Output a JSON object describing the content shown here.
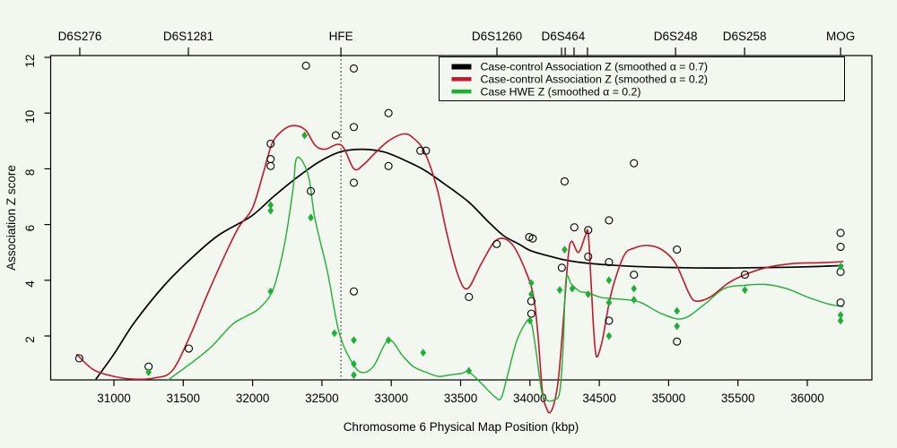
{
  "figure": {
    "background_color": "#F2F7EF",
    "axis_color": "#000000"
  },
  "chart_data": {
    "type": "line",
    "title": "",
    "xlabel": "Chromosome 6 Physical Map Position (kbp)",
    "ylabel": "Association Z score",
    "xlim": [
      30550,
      36465
    ],
    "ylim": [
      0.43,
      12.05
    ],
    "grid": false,
    "x_ticks": [
      31000,
      31500,
      32000,
      32500,
      33000,
      33500,
      34000,
      34500,
      35000,
      35500,
      36000
    ],
    "y_ticks": [
      2,
      4,
      6,
      8,
      10,
      12
    ],
    "hfe_dotted_line_x": 32637,
    "top_markers": [
      {
        "label": "D6S276",
        "x": 30754,
        "ticks": [
          30754
        ]
      },
      {
        "label": "D6S1281",
        "x": 31537,
        "ticks": [
          31537
        ]
      },
      {
        "label": "HFE",
        "x": 32637,
        "ticks": [
          32637
        ]
      },
      {
        "label": "D6S1260",
        "x": 33762,
        "ticks": [
          33762
        ]
      },
      {
        "label": "D6S464",
        "x": 34240,
        "ticks": [
          34228,
          34254,
          34318,
          34415
        ]
      },
      {
        "label": "D6S248",
        "x": 35050,
        "ticks": [
          35050
        ]
      },
      {
        "label": "D6S258",
        "x": 35548,
        "ticks": [
          35548
        ]
      },
      {
        "label": "MOG",
        "x": 36240,
        "ticks": [
          36240
        ]
      }
    ],
    "legend": {
      "position": "top-center",
      "entries": [
        {
          "label": "Case-control Association Z (smoothed α = 0.7)",
          "color": "#000000",
          "swatch_height": 6
        },
        {
          "label": "Case-control Association Z (smoothed α = 0.2)",
          "color": "#C2182E",
          "swatch_height": 4.5
        },
        {
          "label": "Case HWE Z (smoothed α = 0.2)",
          "color": "#1FAE36",
          "swatch_height": 4.5
        }
      ]
    },
    "series": [
      {
        "name": "Case-control Association Z (smoothed α = 0.7)",
        "color": "#000000",
        "width": 1.7,
        "points": [
          [
            30870,
            0.45
          ],
          [
            31000,
            1.35
          ],
          [
            31150,
            2.5
          ],
          [
            31360,
            3.8
          ],
          [
            31550,
            4.75
          ],
          [
            31750,
            5.6
          ],
          [
            31990,
            6.3
          ],
          [
            32150,
            7.0
          ],
          [
            32310,
            7.65
          ],
          [
            32480,
            8.25
          ],
          [
            32640,
            8.62
          ],
          [
            32800,
            8.7
          ],
          [
            32950,
            8.6
          ],
          [
            33100,
            8.3
          ],
          [
            33240,
            7.95
          ],
          [
            33400,
            7.4
          ],
          [
            33560,
            6.8
          ],
          [
            33700,
            6.1
          ],
          [
            33810,
            5.6
          ],
          [
            33920,
            5.3
          ],
          [
            34010,
            5.05
          ],
          [
            34130,
            4.88
          ],
          [
            34250,
            4.73
          ],
          [
            34400,
            4.62
          ],
          [
            34570,
            4.55
          ],
          [
            34745,
            4.5
          ],
          [
            35000,
            4.46
          ],
          [
            35300,
            4.44
          ],
          [
            35600,
            4.45
          ],
          [
            35900,
            4.47
          ],
          [
            36100,
            4.5
          ],
          [
            36260,
            4.53
          ]
        ]
      },
      {
        "name": "Case-control Association Z (smoothed α = 0.2)",
        "color": "#C2182E",
        "width": 1.6,
        "points": [
          [
            30730,
            1.35
          ],
          [
            30850,
            0.8
          ],
          [
            31000,
            0.55
          ],
          [
            31150,
            0.45
          ],
          [
            31300,
            0.5
          ],
          [
            31420,
            0.75
          ],
          [
            31540,
            1.9
          ],
          [
            31670,
            3.45
          ],
          [
            31800,
            4.9
          ],
          [
            31900,
            5.9
          ],
          [
            32000,
            6.6
          ],
          [
            32080,
            7.9
          ],
          [
            32140,
            8.9
          ],
          [
            32210,
            9.35
          ],
          [
            32290,
            9.55
          ],
          [
            32380,
            9.4
          ],
          [
            32450,
            8.85
          ],
          [
            32520,
            8.7
          ],
          [
            32640,
            8.85
          ],
          [
            32730,
            8.0
          ],
          [
            32800,
            8.15
          ],
          [
            32870,
            8.5
          ],
          [
            32980,
            9.0
          ],
          [
            33090,
            9.25
          ],
          [
            33160,
            9.1
          ],
          [
            33240,
            8.6
          ],
          [
            33330,
            7.3
          ],
          [
            33400,
            5.7
          ],
          [
            33480,
            4.2
          ],
          [
            33550,
            3.7
          ],
          [
            33650,
            4.6
          ],
          [
            33760,
            5.45
          ],
          [
            33870,
            5.3
          ],
          [
            33980,
            4.2
          ],
          [
            34030,
            3.3
          ],
          [
            34060,
            1.9
          ],
          [
            34090,
            0.0
          ],
          [
            34120,
            -0.6
          ],
          [
            34145,
            -0.75
          ],
          [
            34175,
            -0.4
          ],
          [
            34205,
            0.45
          ],
          [
            34240,
            2.5
          ],
          [
            34275,
            4.8
          ],
          [
            34300,
            5.4
          ],
          [
            34350,
            5.0
          ],
          [
            34400,
            5.6
          ],
          [
            34420,
            5.7
          ],
          [
            34440,
            4.0
          ],
          [
            34460,
            2.2
          ],
          [
            34480,
            1.26
          ],
          [
            34520,
            1.8
          ],
          [
            34560,
            2.9
          ],
          [
            34600,
            3.8
          ],
          [
            34680,
            4.9
          ],
          [
            34750,
            5.15
          ],
          [
            34850,
            5.25
          ],
          [
            34950,
            5.1
          ],
          [
            35050,
            4.6
          ],
          [
            35150,
            3.5
          ],
          [
            35200,
            3.25
          ],
          [
            35300,
            3.4
          ],
          [
            35430,
            3.9
          ],
          [
            35550,
            4.2
          ],
          [
            35700,
            4.45
          ],
          [
            35900,
            4.6
          ],
          [
            36100,
            4.63
          ],
          [
            36260,
            4.67
          ]
        ]
      },
      {
        "name": "Case HWE Z (smoothed α = 0.2)",
        "color": "#1FAE36",
        "width": 1.4,
        "points": [
          [
            31390,
            0.42
          ],
          [
            31550,
            1.0
          ],
          [
            31700,
            1.6
          ],
          [
            31850,
            2.4
          ],
          [
            31950,
            2.7
          ],
          [
            32050,
            3.0
          ],
          [
            32150,
            3.7
          ],
          [
            32230,
            5.3
          ],
          [
            32290,
            7.2
          ],
          [
            32320,
            8.4
          ],
          [
            32400,
            7.8
          ],
          [
            32450,
            6.2
          ],
          [
            32540,
            4.3
          ],
          [
            32620,
            2.2
          ],
          [
            32700,
            1.2
          ],
          [
            32780,
            0.7
          ],
          [
            32870,
            0.9
          ],
          [
            32980,
            1.85
          ],
          [
            33080,
            1.3
          ],
          [
            33160,
            0.9
          ],
          [
            33250,
            0.7
          ],
          [
            33340,
            0.55
          ],
          [
            33420,
            0.6
          ],
          [
            33500,
            0.65
          ],
          [
            33560,
            0.7
          ],
          [
            33650,
            0.3
          ],
          [
            33740,
            -0.15
          ],
          [
            33790,
            -0.25
          ],
          [
            33830,
            0.42
          ],
          [
            33900,
            1.75
          ],
          [
            33960,
            2.4
          ],
          [
            34005,
            2.55
          ],
          [
            34040,
            1.6
          ],
          [
            34085,
            0.0
          ],
          [
            34120,
            -0.3
          ],
          [
            34170,
            -0.3
          ],
          [
            34215,
            0.0
          ],
          [
            34240,
            1.7
          ],
          [
            34260,
            4.05
          ],
          [
            34300,
            3.85
          ],
          [
            34360,
            3.6
          ],
          [
            34420,
            3.55
          ],
          [
            34500,
            3.4
          ],
          [
            34570,
            3.35
          ],
          [
            34700,
            3.3
          ],
          [
            34800,
            3.2
          ],
          [
            34950,
            2.8
          ],
          [
            35100,
            2.62
          ],
          [
            35250,
            3.1
          ],
          [
            35400,
            3.7
          ],
          [
            35550,
            3.82
          ],
          [
            35700,
            3.85
          ],
          [
            35850,
            3.7
          ],
          [
            36000,
            3.4
          ],
          [
            36150,
            3.15
          ],
          [
            36260,
            3.05
          ]
        ]
      }
    ],
    "scatter": [
      {
        "name": "Case-control Association Z observations",
        "marker": "open-circle",
        "color": "#000000",
        "points": [
          [
            30750,
            1.2
          ],
          [
            31250,
            0.9
          ],
          [
            31540,
            1.55
          ],
          [
            32130,
            8.9
          ],
          [
            32130,
            8.35
          ],
          [
            32130,
            8.1
          ],
          [
            32385,
            11.7
          ],
          [
            32420,
            7.2
          ],
          [
            32600,
            9.2
          ],
          [
            32730,
            11.6
          ],
          [
            32730,
            9.5
          ],
          [
            32730,
            7.5
          ],
          [
            32730,
            3.6
          ],
          [
            32980,
            10.0
          ],
          [
            32980,
            8.1
          ],
          [
            33210,
            8.65
          ],
          [
            33250,
            8.65
          ],
          [
            33560,
            3.4
          ],
          [
            33760,
            5.3
          ],
          [
            33995,
            5.55
          ],
          [
            34020,
            5.5
          ],
          [
            34010,
            3.25
          ],
          [
            34010,
            2.8
          ],
          [
            34230,
            4.45
          ],
          [
            34250,
            7.55
          ],
          [
            34320,
            5.9
          ],
          [
            34420,
            5.8
          ],
          [
            34420,
            4.85
          ],
          [
            34570,
            6.15
          ],
          [
            34570,
            4.65
          ],
          [
            34570,
            2.55
          ],
          [
            34750,
            8.2
          ],
          [
            34750,
            4.2
          ],
          [
            35060,
            5.1
          ],
          [
            35060,
            1.8
          ],
          [
            35550,
            4.2
          ],
          [
            36240,
            5.7
          ],
          [
            36240,
            5.2
          ],
          [
            36240,
            4.3
          ],
          [
            36240,
            3.2
          ]
        ]
      },
      {
        "name": "Case HWE Z observations",
        "marker": "filled-diamond",
        "color": "#1FAE36",
        "points": [
          [
            31250,
            0.7
          ],
          [
            32130,
            6.7
          ],
          [
            32130,
            6.5
          ],
          [
            32130,
            3.6
          ],
          [
            32375,
            9.2
          ],
          [
            32420,
            6.25
          ],
          [
            32590,
            2.1
          ],
          [
            32730,
            1.85
          ],
          [
            32730,
            1.0
          ],
          [
            32730,
            0.6
          ],
          [
            32980,
            1.85
          ],
          [
            33230,
            1.4
          ],
          [
            33560,
            0.75
          ],
          [
            34000,
            2.55
          ],
          [
            34010,
            3.9
          ],
          [
            34010,
            3.5
          ],
          [
            34215,
            3.65
          ],
          [
            34250,
            5.1
          ],
          [
            34305,
            3.7
          ],
          [
            34420,
            3.5
          ],
          [
            34570,
            4.0
          ],
          [
            34570,
            3.2
          ],
          [
            34570,
            2.0
          ],
          [
            34750,
            3.7
          ],
          [
            34750,
            3.3
          ],
          [
            35060,
            2.9
          ],
          [
            35060,
            2.35
          ],
          [
            35550,
            3.65
          ],
          [
            36240,
            4.5
          ],
          [
            36240,
            2.75
          ],
          [
            36240,
            2.55
          ]
        ]
      }
    ]
  }
}
